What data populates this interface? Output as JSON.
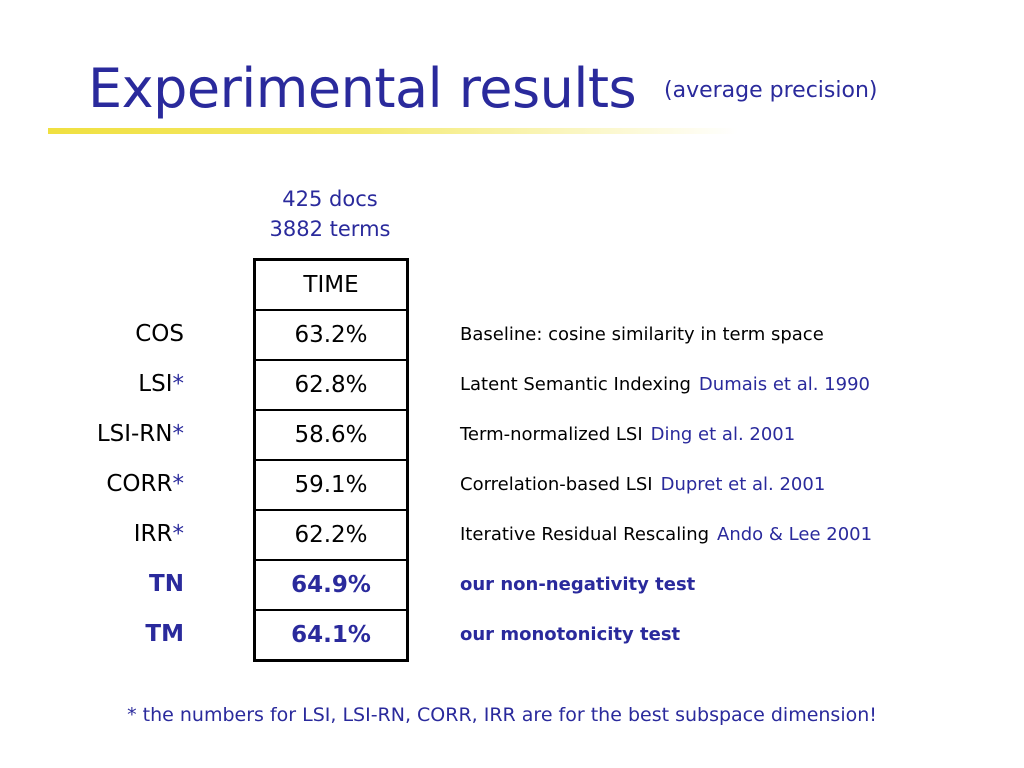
{
  "slide": {
    "title": "Experimental results",
    "subtitle": "(average precision)",
    "dataset": {
      "line1": "425 docs",
      "line2": "3882 terms"
    },
    "table_header": "TIME",
    "rows": [
      {
        "label": "COS",
        "star": "",
        "value": "63.2%",
        "desc": "Baseline: cosine similarity in term space",
        "ref": ""
      },
      {
        "label": "LSI",
        "star": "*",
        "value": "62.8%",
        "desc": "Latent Semantic Indexing",
        "ref": "Dumais et al. 1990"
      },
      {
        "label": "LSI-RN",
        "star": "*",
        "value": "58.6%",
        "desc": "Term-normalized LSI",
        "ref": "Ding et al. 2001"
      },
      {
        "label": "CORR",
        "star": "*",
        "value": "59.1%",
        "desc": "Correlation-based LSI",
        "ref": "Dupret et al. 2001"
      },
      {
        "label": "IRR",
        "star": "*",
        "value": "62.2%",
        "desc": "Iterative Residual Rescaling",
        "ref": "Ando & Lee 2001"
      },
      {
        "label": "TN",
        "star": "",
        "value": "64.9%",
        "desc": "our non-negativity test",
        "ref": "",
        "highlight": true
      },
      {
        "label": "TM",
        "star": "",
        "value": "64.1%",
        "desc": "our monotonicity test",
        "ref": "",
        "highlight": true
      }
    ],
    "footnote": "* the numbers for LSI, LSI-RN, CORR, IRR are for the best subspace dimension!",
    "colors": {
      "accent": "#2a2a9c",
      "rule": "#f0e040",
      "text": "#000000"
    }
  }
}
